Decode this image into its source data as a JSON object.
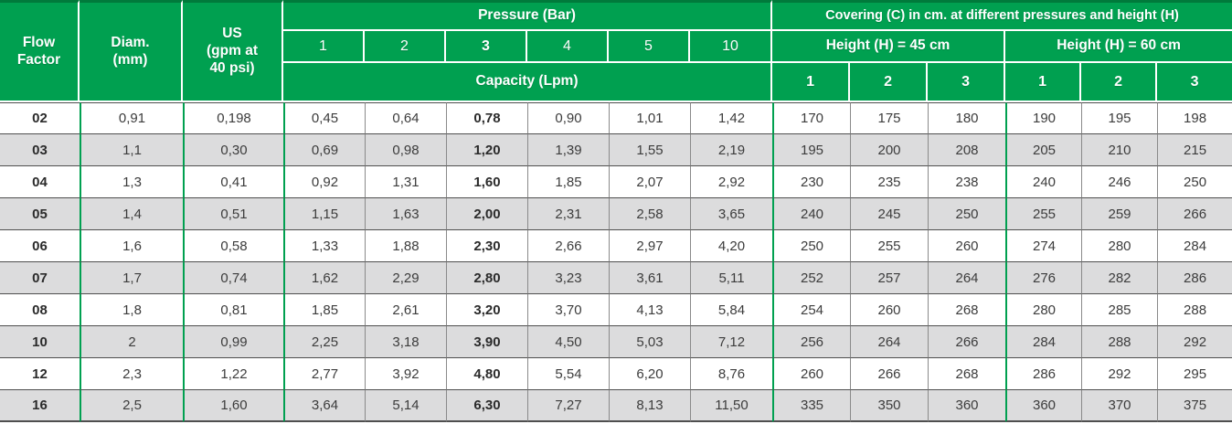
{
  "colors": {
    "header_green": "#00A050",
    "header_top_border": "#007A3B",
    "row_alt_gray": "#DCDCDD",
    "grid_line_dark": "#4F4F4F",
    "grid_line_gray": "#8A8A8A",
    "body_text": "#3C3C3C"
  },
  "header": {
    "flow_factor": "Flow\nFactor",
    "diam": "Diam.\n(mm)",
    "us": "US\n(gpm at\n40 psi)",
    "pressure_title": "Pressure (Bar)",
    "pressure_cols": [
      "1",
      "2",
      "3",
      "4",
      "5",
      "10"
    ],
    "capacity_title": "Capacity (Lpm)",
    "covering_title": "Covering (C) in cm. at different pressures and height (H)",
    "height45_title": "Height (H) = 45 cm",
    "height60_title": "Height (H) = 60 cm",
    "covering_cols": [
      "1",
      "2",
      "3"
    ]
  },
  "rows": [
    {
      "flow": "02",
      "diam": "0,91",
      "us": "0,198",
      "capacity": [
        "0,45",
        "0,64",
        "0,78",
        "0,90",
        "1,01",
        "1,42"
      ],
      "h45": [
        "170",
        "175",
        "180"
      ],
      "h60": [
        "190",
        "195",
        "198"
      ]
    },
    {
      "flow": "03",
      "diam": "1,1",
      "us": "0,30",
      "capacity": [
        "0,69",
        "0,98",
        "1,20",
        "1,39",
        "1,55",
        "2,19"
      ],
      "h45": [
        "195",
        "200",
        "208"
      ],
      "h60": [
        "205",
        "210",
        "215"
      ]
    },
    {
      "flow": "04",
      "diam": "1,3",
      "us": "0,41",
      "capacity": [
        "0,92",
        "1,31",
        "1,60",
        "1,85",
        "2,07",
        "2,92"
      ],
      "h45": [
        "230",
        "235",
        "238"
      ],
      "h60": [
        "240",
        "246",
        "250"
      ]
    },
    {
      "flow": "05",
      "diam": "1,4",
      "us": "0,51",
      "capacity": [
        "1,15",
        "1,63",
        "2,00",
        "2,31",
        "2,58",
        "3,65"
      ],
      "h45": [
        "240",
        "245",
        "250"
      ],
      "h60": [
        "255",
        "259",
        "266"
      ]
    },
    {
      "flow": "06",
      "diam": "1,6",
      "us": "0,58",
      "capacity": [
        "1,33",
        "1,88",
        "2,30",
        "2,66",
        "2,97",
        "4,20"
      ],
      "h45": [
        "250",
        "255",
        "260"
      ],
      "h60": [
        "274",
        "280",
        "284"
      ]
    },
    {
      "flow": "07",
      "diam": "1,7",
      "us": "0,74",
      "capacity": [
        "1,62",
        "2,29",
        "2,80",
        "3,23",
        "3,61",
        "5,11"
      ],
      "h45": [
        "252",
        "257",
        "264"
      ],
      "h60": [
        "276",
        "282",
        "286"
      ]
    },
    {
      "flow": "08",
      "diam": "1,8",
      "us": "0,81",
      "capacity": [
        "1,85",
        "2,61",
        "3,20",
        "3,70",
        "4,13",
        "5,84"
      ],
      "h45": [
        "254",
        "260",
        "268"
      ],
      "h60": [
        "280",
        "285",
        "288"
      ]
    },
    {
      "flow": "10",
      "diam": "2",
      "us": "0,99",
      "capacity": [
        "2,25",
        "3,18",
        "3,90",
        "4,50",
        "5,03",
        "7,12"
      ],
      "h45": [
        "256",
        "264",
        "266"
      ],
      "h60": [
        "284",
        "288",
        "292"
      ]
    },
    {
      "flow": "12",
      "diam": "2,3",
      "us": "1,22",
      "capacity": [
        "2,77",
        "3,92",
        "4,80",
        "5,54",
        "6,20",
        "8,76"
      ],
      "h45": [
        "260",
        "266",
        "268"
      ],
      "h60": [
        "286",
        "292",
        "295"
      ]
    },
    {
      "flow": "16",
      "diam": "2,5",
      "us": "1,60",
      "capacity": [
        "3,64",
        "5,14",
        "6,30",
        "7,27",
        "8,13",
        "11,50"
      ],
      "h45": [
        "335",
        "350",
        "360"
      ],
      "h60": [
        "360",
        "370",
        "375"
      ]
    }
  ]
}
